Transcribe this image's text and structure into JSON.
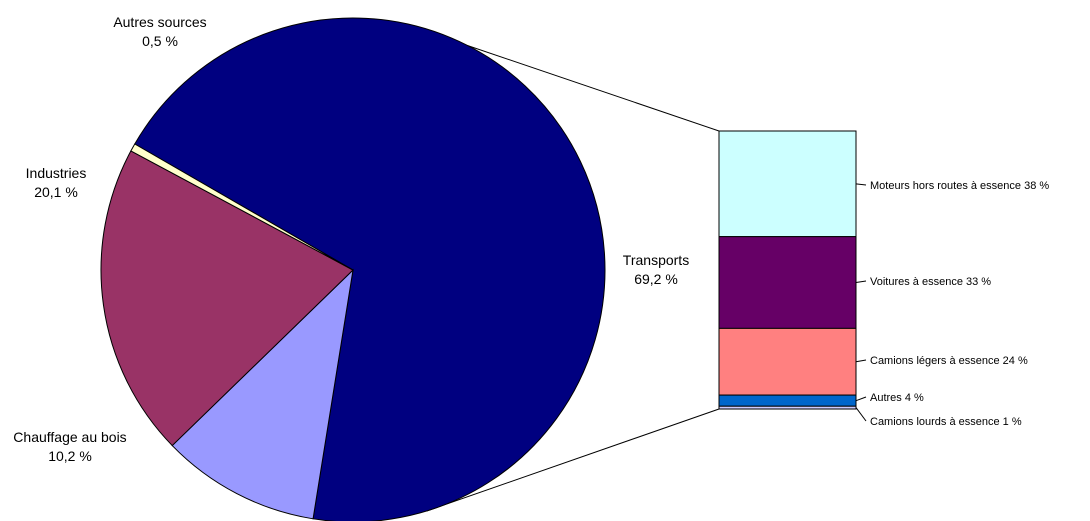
{
  "chart_data": [
    {
      "type": "pie",
      "slices": [
        {
          "label": "Transports",
          "value": 69.2,
          "value_text": "69,2 %",
          "color": "#000080"
        },
        {
          "label": "Chauffage au bois",
          "value": 10.2,
          "value_text": "10,2 %",
          "color": "#9999ff"
        },
        {
          "label": "Industries",
          "value": 20.1,
          "value_text": "20,1 %",
          "color": "#993366"
        },
        {
          "label": "Autres sources",
          "value": 0.5,
          "value_text": "0,5 %",
          "color": "#ffffcc"
        }
      ]
    },
    {
      "type": "bar",
      "stacked": true,
      "breakdown_of": "Transports",
      "segments": [
        {
          "label": "Moteurs hors routes à essence 38 %",
          "value": 38,
          "color": "#ccffff"
        },
        {
          "label": "Voitures à essence 33 %",
          "value": 33,
          "color": "#660066"
        },
        {
          "label": "Camions légers à essence 24 %",
          "value": 24,
          "color": "#ff8080"
        },
        {
          "label": "Autres 4 %",
          "value": 4,
          "color": "#0066cc"
        },
        {
          "label": "Camions lourds à essence 1 %",
          "value": 1,
          "color": "#ccccff"
        }
      ]
    }
  ]
}
